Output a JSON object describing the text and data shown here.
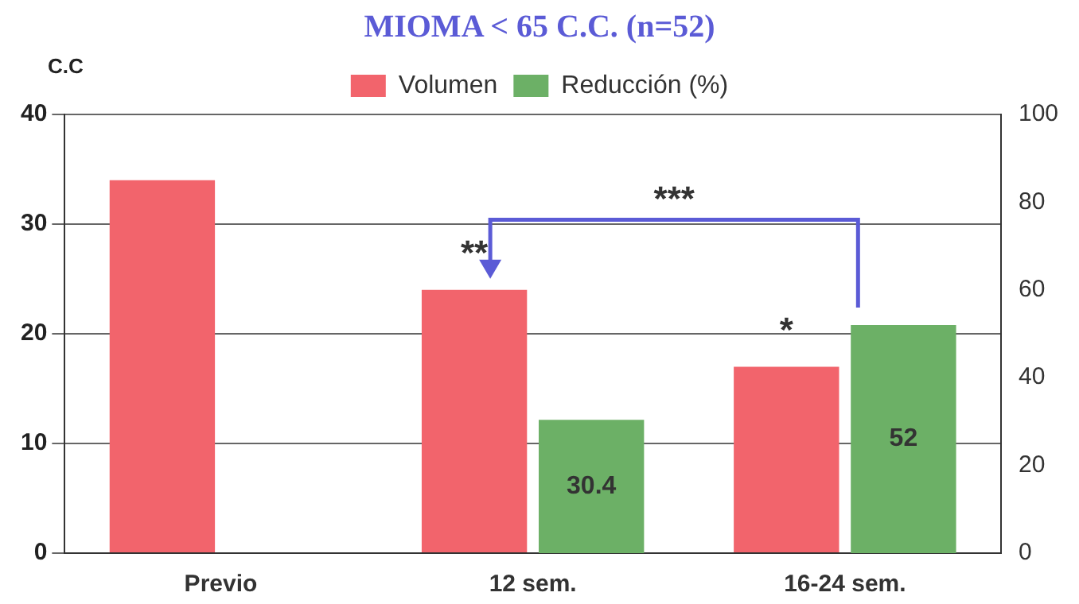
{
  "chart_data": {
    "type": "bar",
    "title": "MIOMA  < 65 C.C.  (n=52)",
    "ylabel": "C.C",
    "categories": [
      "Previo",
      "12 sem.",
      "16-24 sem."
    ],
    "series": [
      {
        "name": "Volumen",
        "color": "#f2646c",
        "values": [
          34,
          24,
          17
        ]
      },
      {
        "name": "Reducción (%)",
        "color": "#6cb066",
        "values": [
          null,
          30.4,
          52
        ],
        "axis": "y2",
        "value_labels": [
          null,
          "30.4",
          "52"
        ]
      }
    ],
    "ylim": [
      0,
      40
    ],
    "yticks": [
      0,
      10,
      20,
      30,
      40
    ],
    "y2lim": [
      0,
      100
    ],
    "y2ticks": [
      0,
      20,
      40,
      60,
      80,
      100
    ],
    "grid": "y",
    "legend": "top",
    "annotations": [
      "**",
      "***",
      "*"
    ]
  }
}
